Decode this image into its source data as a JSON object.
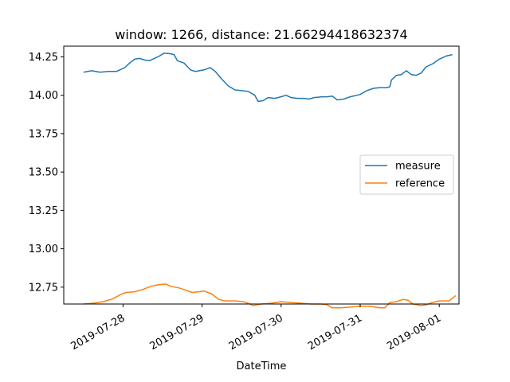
{
  "chart_data": {
    "type": "line",
    "title": "window: 1266, distance: 21.66294418632374",
    "xlabel": "DateTime",
    "ylabel": "",
    "xlim": [
      "2019-07-27T06:00",
      "2019-08-01T06:00"
    ],
    "ylim": [
      12.64,
      14.32
    ],
    "yticks": [
      12.75,
      13.0,
      13.25,
      13.5,
      13.75,
      14.0,
      14.25
    ],
    "ytick_labels": [
      "12.75",
      "13.00",
      "13.25",
      "13.50",
      "13.75",
      "14.00",
      "14.25"
    ],
    "xticks": [
      "2019-07-28T00:00",
      "2019-07-29T00:00",
      "2019-07-30T00:00",
      "2019-07-31T00:00",
      "2019-08-01T00:00"
    ],
    "xtick_labels": [
      "2019-07-28",
      "2019-07-29",
      "2019-07-30",
      "2019-07-31",
      "2019-08-01"
    ],
    "grid": false,
    "legend_position": "center-right",
    "series": [
      {
        "name": "measure",
        "color": "#1f77b4",
        "points": [
          [
            "2019-07-27T12:00",
            14.15
          ],
          [
            "2019-07-27T14:30",
            14.16
          ],
          [
            "2019-07-27T17:00",
            14.15
          ],
          [
            "2019-07-27T19:30",
            14.155
          ],
          [
            "2019-07-27T22:00",
            14.155
          ],
          [
            "2019-07-28T00:30",
            14.18
          ],
          [
            "2019-07-28T02:00",
            14.21
          ],
          [
            "2019-07-28T03:30",
            14.235
          ],
          [
            "2019-07-28T05:00",
            14.24
          ],
          [
            "2019-07-28T06:30",
            14.23
          ],
          [
            "2019-07-28T08:00",
            14.225
          ],
          [
            "2019-07-28T09:30",
            14.24
          ],
          [
            "2019-07-28T11:00",
            14.255
          ],
          [
            "2019-07-28T12:30",
            14.275
          ],
          [
            "2019-07-28T14:30",
            14.27
          ],
          [
            "2019-07-28T15:30",
            14.265
          ],
          [
            "2019-07-28T16:30",
            14.225
          ],
          [
            "2019-07-28T18:30",
            14.21
          ],
          [
            "2019-07-28T20:30",
            14.165
          ],
          [
            "2019-07-28T22:00",
            14.155
          ],
          [
            "2019-07-29T00:30",
            14.165
          ],
          [
            "2019-07-29T02:30",
            14.18
          ],
          [
            "2019-07-29T04:00",
            14.155
          ],
          [
            "2019-07-29T06:00",
            14.105
          ],
          [
            "2019-07-29T08:00",
            14.06
          ],
          [
            "2019-07-29T10:00",
            14.035
          ],
          [
            "2019-07-29T12:00",
            14.03
          ],
          [
            "2019-07-29T14:00",
            14.025
          ],
          [
            "2019-07-29T16:00",
            14.0
          ],
          [
            "2019-07-29T17:00",
            13.96
          ],
          [
            "2019-07-29T18:30",
            13.965
          ],
          [
            "2019-07-29T20:00",
            13.985
          ],
          [
            "2019-07-29T22:00",
            13.98
          ],
          [
            "2019-07-30T00:00",
            13.99
          ],
          [
            "2019-07-30T01:30",
            14.0
          ],
          [
            "2019-07-30T03:00",
            13.985
          ],
          [
            "2019-07-30T05:00",
            13.98
          ],
          [
            "2019-07-30T07:00",
            13.98
          ],
          [
            "2019-07-30T08:30",
            13.975
          ],
          [
            "2019-07-30T10:00",
            13.985
          ],
          [
            "2019-07-30T12:30",
            13.99
          ],
          [
            "2019-07-30T14:00",
            13.99
          ],
          [
            "2019-07-30T15:30",
            13.995
          ],
          [
            "2019-07-30T17:00",
            13.97
          ],
          [
            "2019-07-30T19:00",
            13.975
          ],
          [
            "2019-07-30T21:00",
            13.99
          ],
          [
            "2019-07-31T00:00",
            14.005
          ],
          [
            "2019-07-31T02:00",
            14.03
          ],
          [
            "2019-07-31T04:00",
            14.045
          ],
          [
            "2019-07-31T06:00",
            14.05
          ],
          [
            "2019-07-31T08:00",
            14.05
          ],
          [
            "2019-07-31T09:00",
            14.055
          ],
          [
            "2019-07-31T09:30",
            14.1
          ],
          [
            "2019-07-31T11:00",
            14.13
          ],
          [
            "2019-07-31T12:30",
            14.135
          ],
          [
            "2019-07-31T14:00",
            14.16
          ],
          [
            "2019-07-31T15:30",
            14.135
          ],
          [
            "2019-07-31T17:00",
            14.13
          ],
          [
            "2019-07-31T18:30",
            14.145
          ],
          [
            "2019-07-31T20:00",
            14.185
          ],
          [
            "2019-07-31T22:00",
            14.205
          ],
          [
            "2019-08-01T00:00",
            14.235
          ],
          [
            "2019-08-01T02:00",
            14.255
          ],
          [
            "2019-08-01T04:00",
            14.265
          ]
        ]
      },
      {
        "name": "reference",
        "color": "#ff7f0e",
        "points": [
          [
            "2019-07-27T12:00",
            12.64
          ],
          [
            "2019-07-27T15:00",
            12.645
          ],
          [
            "2019-07-27T18:00",
            12.655
          ],
          [
            "2019-07-27T21:00",
            12.675
          ],
          [
            "2019-07-27T23:30",
            12.705
          ],
          [
            "2019-07-28T01:00",
            12.715
          ],
          [
            "2019-07-28T03:30",
            12.72
          ],
          [
            "2019-07-28T06:00",
            12.735
          ],
          [
            "2019-07-28T08:30",
            12.755
          ],
          [
            "2019-07-28T10:30",
            12.765
          ],
          [
            "2019-07-28T13:00",
            12.77
          ],
          [
            "2019-07-28T14:30",
            12.755
          ],
          [
            "2019-07-28T17:00",
            12.745
          ],
          [
            "2019-07-28T19:00",
            12.73
          ],
          [
            "2019-07-28T21:00",
            12.715
          ],
          [
            "2019-07-28T23:00",
            12.72
          ],
          [
            "2019-07-29T00:30",
            12.725
          ],
          [
            "2019-07-29T03:00",
            12.705
          ],
          [
            "2019-07-29T05:00",
            12.67
          ],
          [
            "2019-07-29T07:00",
            12.66
          ],
          [
            "2019-07-29T10:00",
            12.66
          ],
          [
            "2019-07-29T12:30",
            12.655
          ],
          [
            "2019-07-29T14:30",
            12.64
          ],
          [
            "2019-07-29T15:30",
            12.63
          ],
          [
            "2019-07-29T18:00",
            12.64
          ],
          [
            "2019-07-29T21:00",
            12.645
          ],
          [
            "2019-07-30T00:00",
            12.655
          ],
          [
            "2019-07-30T03:00",
            12.65
          ],
          [
            "2019-07-30T06:00",
            12.645
          ],
          [
            "2019-07-30T09:00",
            12.64
          ],
          [
            "2019-07-30T12:00",
            12.64
          ],
          [
            "2019-07-30T14:00",
            12.635
          ],
          [
            "2019-07-30T15:30",
            12.615
          ],
          [
            "2019-07-30T18:00",
            12.615
          ],
          [
            "2019-07-30T21:00",
            12.62
          ],
          [
            "2019-07-31T00:00",
            12.625
          ],
          [
            "2019-07-31T03:00",
            12.625
          ],
          [
            "2019-07-31T06:00",
            12.615
          ],
          [
            "2019-07-31T07:30",
            12.615
          ],
          [
            "2019-07-31T09:00",
            12.65
          ],
          [
            "2019-07-31T11:00",
            12.655
          ],
          [
            "2019-07-31T13:00",
            12.67
          ],
          [
            "2019-07-31T14:30",
            12.665
          ],
          [
            "2019-07-31T16:00",
            12.64
          ],
          [
            "2019-07-31T18:30",
            12.63
          ],
          [
            "2019-07-31T20:00",
            12.635
          ],
          [
            "2019-07-31T22:00",
            12.65
          ],
          [
            "2019-08-01T00:00",
            12.66
          ],
          [
            "2019-08-01T02:00",
            12.66
          ],
          [
            "2019-08-01T03:00",
            12.66
          ],
          [
            "2019-08-01T05:00",
            12.695
          ]
        ]
      }
    ]
  }
}
